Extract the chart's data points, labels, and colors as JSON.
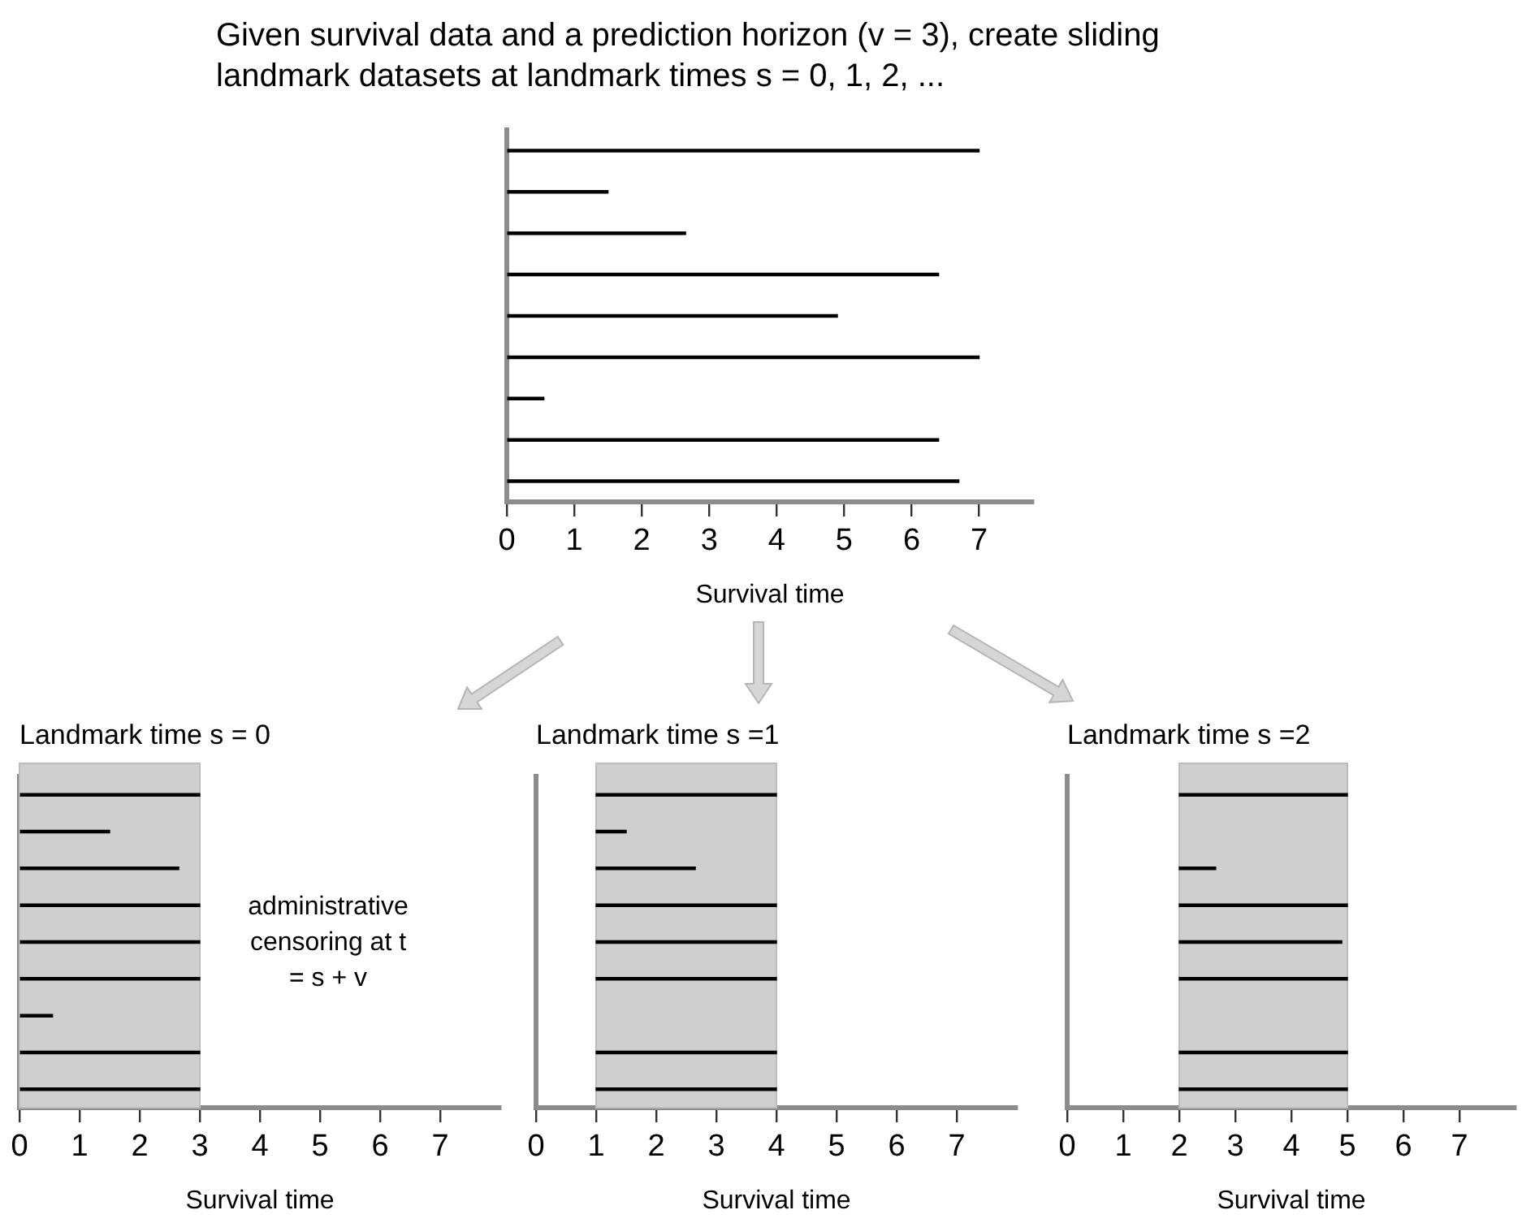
{
  "chart_data": [
    {
      "type": "bar",
      "orientation": "horizontal",
      "title": "Given survival data and a prediction horizon (v = 3), create sliding landmark datasets at landmark times s = 0, 1, 2, ...",
      "xlabel": "Survival time",
      "categories": [
        null,
        null,
        null,
        null,
        null,
        null,
        null,
        null,
        null
      ],
      "tick_labels": "x",
      "xlim": [
        0,
        7.8
      ],
      "xticks": [
        0,
        1,
        2,
        3,
        4,
        5,
        6,
        7
      ],
      "series": [
        {
          "color": "#000000",
          "values": [
            7.0,
            1.5,
            2.65,
            6.4,
            4.9,
            7.0,
            0.55,
            6.4,
            6.7
          ]
        }
      ]
    },
    {
      "type": "bar",
      "orientation": "horizontal",
      "title": "Landmark time s = 0",
      "xlabel": "Survival time",
      "categories": [
        null,
        null,
        null,
        null,
        null,
        null,
        null,
        null,
        null
      ],
      "tick_labels": "x",
      "xlim": [
        0,
        8
      ],
      "xticks": [
        0,
        1,
        2,
        3,
        4,
        5,
        6,
        7
      ],
      "annotations": [
        "administrative censoring at t = s + v"
      ],
      "bands": [
        {
          "axis": "x",
          "from": 0,
          "to": 3,
          "color": "#cfcfcf"
        }
      ],
      "series": [
        {
          "color": "#000000",
          "base": [
            0,
            0,
            0,
            0,
            0,
            0,
            0,
            0,
            0
          ],
          "values": [
            3,
            1.5,
            2.65,
            3,
            3,
            3,
            0.55,
            3,
            3
          ]
        }
      ]
    },
    {
      "type": "bar",
      "orientation": "horizontal",
      "title": "Landmark time s =1",
      "xlabel": "Survival time",
      "categories": [
        null,
        null,
        null,
        null,
        null,
        null,
        null,
        null,
        null
      ],
      "tick_labels": "x",
      "xlim": [
        0,
        8
      ],
      "xticks": [
        0,
        1,
        2,
        3,
        4,
        5,
        6,
        7
      ],
      "bands": [
        {
          "axis": "x",
          "from": 1,
          "to": 4,
          "color": "#cfcfcf"
        }
      ],
      "series": [
        {
          "color": "#000000",
          "base": [
            1,
            1,
            1,
            1,
            1,
            1,
            null,
            1,
            1
          ],
          "values": [
            3,
            0.5,
            1.65,
            3,
            3,
            3,
            null,
            3,
            3
          ]
        }
      ]
    },
    {
      "type": "bar",
      "orientation": "horizontal",
      "title": "Landmark time s =2",
      "xlabel": "Survival time",
      "categories": [
        null,
        null,
        null,
        null,
        null,
        null,
        null,
        null,
        null
      ],
      "tick_labels": "x",
      "xlim": [
        0,
        8
      ],
      "xticks": [
        0,
        1,
        2,
        3,
        4,
        5,
        6,
        7
      ],
      "bands": [
        {
          "axis": "x",
          "from": 2,
          "to": 5,
          "color": "#cfcfcf"
        }
      ],
      "series": [
        {
          "color": "#000000",
          "base": [
            2,
            null,
            2,
            2,
            2,
            2,
            null,
            2,
            2
          ],
          "values": [
            3,
            null,
            0.65,
            3,
            2.9,
            3,
            null,
            3,
            3
          ]
        }
      ]
    }
  ]
}
